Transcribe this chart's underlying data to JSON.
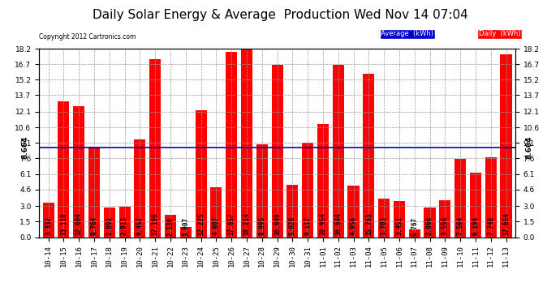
{
  "title": "Daily Solar Energy & Average  Production Wed Nov 14 07:04",
  "copyright": "Copyright 2012 Cartronics.com",
  "categories": [
    "10-14",
    "10-15",
    "10-16",
    "10-17",
    "10-18",
    "10-19",
    "10-20",
    "10-21",
    "10-22",
    "10-23",
    "10-24",
    "10-25",
    "10-26",
    "10-27",
    "10-28",
    "10-29",
    "10-30",
    "10-31",
    "11-01",
    "11-02",
    "11-03",
    "11-04",
    "11-05",
    "11-06",
    "11-07",
    "11-08",
    "11-09",
    "11-10",
    "11-11",
    "11-12",
    "11-13"
  ],
  "values": [
    3.332,
    13.11,
    12.604,
    8.764,
    2.891,
    2.913,
    9.452,
    17.198,
    2.13,
    1.007,
    12.225,
    4.807,
    17.857,
    18.214,
    8.995,
    16.649,
    5.02,
    9.112,
    10.954,
    16.644,
    4.956,
    15.761,
    3.703,
    3.451,
    0.767,
    2.866,
    3.556,
    7.564,
    6.194,
    7.748,
    17.654
  ],
  "bar_labels": [
    "3.332",
    "13.110",
    "12.604",
    "8.764",
    "2.891",
    "2.913",
    "9.452",
    "17.198",
    "2.130",
    "1.007",
    "12.225",
    "4.807",
    "17.857",
    "18.214",
    "8.995",
    "16.649",
    "5.020",
    "9.112",
    "10.954",
    "16.644",
    "4.956",
    "15.761",
    "3.703",
    "3.451",
    "0.767",
    "2.866",
    "3.556",
    "7.564",
    "6.194",
    "7.748",
    "17.654"
  ],
  "average": 8.664,
  "bar_color": "#ff0000",
  "avg_line_color": "#0000cc",
  "background_color": "#ffffff",
  "plot_bg_color": "#ffffff",
  "grid_color": "#999999",
  "ylim": [
    0.0,
    18.2
  ],
  "yticks": [
    0.0,
    1.5,
    3.0,
    4.6,
    6.1,
    7.6,
    9.1,
    10.6,
    12.1,
    13.7,
    15.2,
    16.7,
    18.2
  ],
  "title_fontsize": 11,
  "tick_fontsize": 6.5,
  "bar_label_fontsize": 5.5,
  "legend_avg_label": "Average  (kWh)",
  "legend_daily_label": "Daily  (kWh)",
  "left_avg_label": "8.664",
  "right_avg_label": "8.664"
}
